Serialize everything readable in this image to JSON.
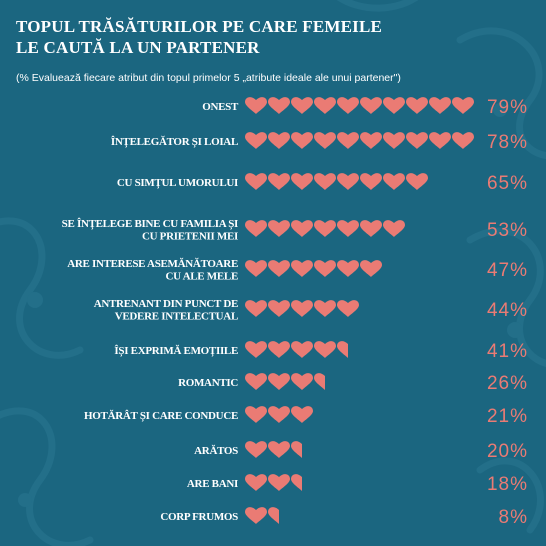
{
  "title_line1": "TOPUL TRĂSĂTURILOR PE CARE FEMEILE",
  "title_line2": "LE CAUTĂ LA UN PARTENER",
  "subtitle": "(% Evaluează fiecare atribut din topul primelor 5 „atribute ideale ale unui partener\")",
  "colors": {
    "background": "#1b6680",
    "heart": "#ea7b74",
    "percent": "#ea7b74",
    "label": "#ffffff"
  },
  "icon": "heart-icon",
  "chart_data": {
    "type": "bar",
    "title": "TOPUL TRĂSĂTURILOR PE CARE FEMEILE LE CAUTĂ LA UN PARTENER",
    "subtitle": "(% Evaluează fiecare atribut din topul primelor 5 „atribute ideale ale unui partener\")",
    "unit": "%",
    "categories": [
      [
        "ONEST"
      ],
      [
        "ÎNȚELEGĂTOR ȘI LOIAL"
      ],
      [
        "CU SIMȚUL UMORULUI"
      ],
      [
        "SE ÎNȚELEGE BINE CU FAMILIA ȘI",
        "CU PRIETENII MEI"
      ],
      [
        "ARE INTERESE ASEMĂNĂTOARE",
        "CU ALE MELE"
      ],
      [
        "ANTRENANT DIN PUNCT DE",
        "VEDERE INTELECTUAL"
      ],
      [
        "ÎȘI EXPRIMĂ EMOȚIILE"
      ],
      [
        "ROMANTIC"
      ],
      [
        "HOTĂRÂT ȘI CARE CONDUCE"
      ],
      [
        "ARĂTOS"
      ],
      [
        "ARE BANI"
      ],
      [
        "CORP FRUMOS"
      ]
    ],
    "values": [
      79,
      78,
      65,
      53,
      47,
      44,
      41,
      26,
      21,
      20,
      18,
      8
    ],
    "labels": [
      "79%",
      "78%",
      "65%",
      "53%",
      "47%",
      "44%",
      "41%",
      "26%",
      "21%",
      "20%",
      "18%",
      "8%"
    ],
    "hearts": [
      10,
      10,
      8,
      7,
      6,
      5,
      4.5,
      3.5,
      3,
      2.5,
      2.5,
      1.5
    ]
  }
}
